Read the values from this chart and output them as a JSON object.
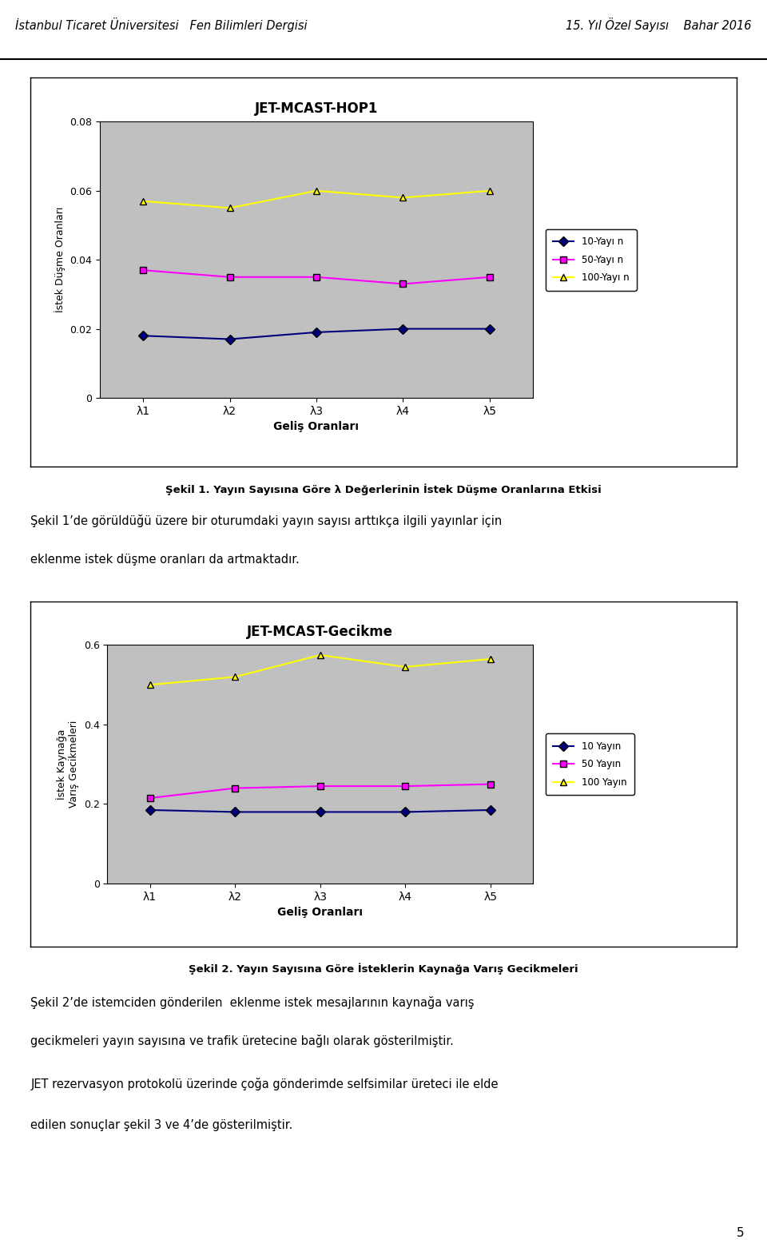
{
  "header_left": "İstanbul Ticaret Üniversitesi   Fen Bilimleri Dergisi",
  "header_right": "15. Yıl Özel Sayısı    Bahar 2016",
  "page_bg": "#ffffff",
  "chart1": {
    "title": "JET-MCAST-HOP1",
    "xlabel": "Geliş Oranları",
    "ylabel": "İstek Düşme Oranları",
    "x_labels": [
      "λ1",
      "λ2",
      "λ3",
      "λ4",
      "λ5"
    ],
    "ylim": [
      0,
      0.08
    ],
    "yticks": [
      0,
      0.02,
      0.04,
      0.06,
      0.08
    ],
    "series": [
      {
        "label": "10-Yayı n",
        "color": "#000080",
        "marker": "D",
        "values": [
          0.018,
          0.017,
          0.019,
          0.02,
          0.02
        ]
      },
      {
        "label": "50-Yayı n",
        "color": "#ff00ff",
        "marker": "s",
        "values": [
          0.037,
          0.035,
          0.035,
          0.033,
          0.035
        ]
      },
      {
        "label": "100-Yayı n",
        "color": "#ffff00",
        "marker": "^",
        "values": [
          0.057,
          0.055,
          0.06,
          0.058,
          0.06
        ]
      }
    ],
    "bg_color": "#c0c0c0"
  },
  "caption1": "Şekil 1. Yayın Sayısına Göre λ Değerlerinin İstek Düşme Oranlarına Etkisi",
  "para1_line1": "Şekil 1’de görüldüğü üzere bir oturumdaki yayın sayısı arttıkça ilgili yayınlar için",
  "para1_line2": "eklenme istek düşme oranları da artmaktadır.",
  "chart2": {
    "title": "JET-MCAST-Gecikme",
    "xlabel": "Geliş Oranları",
    "ylabel": "İstek Kaynağa\nVarış Gecikmeleri",
    "x_labels": [
      "λ1",
      "λ2",
      "λ3",
      "λ4",
      "λ5"
    ],
    "ylim": [
      0,
      0.6
    ],
    "yticks": [
      0,
      0.2,
      0.4,
      0.6
    ],
    "series": [
      {
        "label": "10 Yayın",
        "color": "#000080",
        "marker": "D",
        "values": [
          0.185,
          0.18,
          0.18,
          0.18,
          0.185
        ]
      },
      {
        "label": "50 Yayın",
        "color": "#ff00ff",
        "marker": "s",
        "values": [
          0.215,
          0.24,
          0.245,
          0.245,
          0.25
        ]
      },
      {
        "label": "100 Yayın",
        "color": "#ffff00",
        "marker": "^",
        "values": [
          0.5,
          0.52,
          0.575,
          0.545,
          0.565
        ]
      }
    ],
    "bg_color": "#c0c0c0"
  },
  "caption2": "Şekil 2. Yayın Sayısına Göre İsteklerin Kaynağa Varış Gecikmeleri",
  "para2_line1": "Şekil 2’de istemciden gönderilen  eklenme istek mesajlarının kaynağa varış",
  "para2_line2": "gecikmeleri yayın sayısına ve trafik üretecine bağlı olarak gösterilmiştir.",
  "para3_line1": "JET rezervasyon protokolü üzerinde çoğa gönderimde selfsimilar üreteci ile elde",
  "para3_line2": "edilen sonuçlar şekil 3 ve 4’de gösterilmiştir.",
  "page_number": "5"
}
